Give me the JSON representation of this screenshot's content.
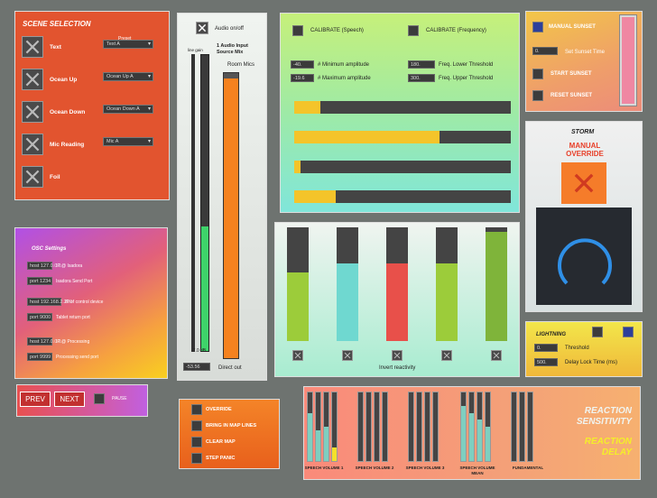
{
  "scene_selection": {
    "title": "SCENE SELECTION",
    "preset_header": "Preset",
    "items": [
      {
        "label": "Text",
        "preset": "Text A"
      },
      {
        "label": "Ocean Up",
        "preset": "Ocean Up A"
      },
      {
        "label": "Ocean Down",
        "preset": "Ocean Down A"
      },
      {
        "label": "Mic Reading",
        "preset": "Mic A"
      },
      {
        "label": "Foil",
        "preset": ""
      }
    ]
  },
  "osc": {
    "title": "OSC Settings",
    "rows": [
      {
        "value": "host 127.0.0.1",
        "label": "IP @ Isadora"
      },
      {
        "value": "port 1234",
        "label": "Isadora Send Port"
      },
      {
        "value": "host 192.168.2.200",
        "label": "IP of control device"
      },
      {
        "value": "port 9000",
        "label": "Tablet return port"
      },
      {
        "value": "host 127.0.0.1",
        "label": "IP @ Processing"
      },
      {
        "value": "port 9999",
        "label": "Processing send port"
      }
    ]
  },
  "nav": {
    "prev": "PREV",
    "next": "NEXT",
    "pause": "PAUSE"
  },
  "audio": {
    "onoff_label": "Audio on/off",
    "line_gain": "line gain",
    "source_title": "1 Audio Input Source Mix",
    "room_mics": "Room Mics",
    "db_label": "-7.0 dB",
    "direct_value": "-53.56",
    "direct_label": "Direct out",
    "level_fraction": 0.42,
    "room_fraction": 0.98
  },
  "calibrate": {
    "speech": "CALIBRATE (Speech)",
    "frequency": "CALIBRATE (Frequency)",
    "min_amp_value": "-40.",
    "min_amp_label": "# Minimum amplitude",
    "max_amp_value": "-19.6",
    "max_amp_label": "# Maximum amplitude",
    "freq_low_value": "180.",
    "freq_low_label": "Freq. Lower Threshold",
    "freq_up_value": "300.",
    "freq_up_label": "Freq. Upper Threshold",
    "bars": [
      0.12,
      0.67,
      0.03,
      0.19
    ]
  },
  "reactivity": {
    "label": "Invert reactivity",
    "meters": [
      {
        "fraction": 0.6,
        "color": "#9ccc3a"
      },
      {
        "fraction": 0.68,
        "color": "#6fd8d0"
      },
      {
        "fraction": 0.68,
        "color": "#e8504a"
      },
      {
        "fraction": 0.68,
        "color": "#9ccc3a"
      },
      {
        "fraction": 0.96,
        "color": "#7fb43a"
      }
    ]
  },
  "sunset": {
    "manual": "MANUAL SUNSET",
    "time_value": "0.",
    "time_label": "Set Sunset Time",
    "start": "START SUNSET",
    "reset": "RESET SUNSET"
  },
  "storm": {
    "title": "STORM",
    "override": "MANUAL OVERRIDE"
  },
  "lightning": {
    "title": "LIGHTNING",
    "threshold_value": "0.",
    "threshold_label": "Threshold",
    "delay_value": "500.",
    "delay_label": "Delay Lock Time (ms)"
  },
  "overrides": {
    "items": [
      "OVERRIDE",
      "BRING IN MAP LINES",
      "CLEAR MAP",
      "STEP PANIC"
    ]
  },
  "reaction": {
    "sensitivity": "REACTION SENSITIVITY",
    "delay": "REACTION DELAY",
    "groups": [
      {
        "label": "SPEECH VOLUME 1",
        "meters": [
          0.7,
          0.45,
          0.5,
          0.2
        ]
      },
      {
        "label": "SPEECH VOLUME 2",
        "meters": [
          0.0,
          0.0,
          0.0,
          0.0
        ]
      },
      {
        "label": "SPEECH VOLUME 3",
        "meters": [
          0.0,
          0.0,
          0.0,
          0.0
        ]
      },
      {
        "label": "SPEECH VOLUME MEAN",
        "meters": [
          0.8,
          0.7,
          0.6,
          0.5
        ]
      },
      {
        "label": "FUNDAMENTAL",
        "meters": [
          0.0,
          0.0,
          0.0
        ]
      }
    ]
  }
}
